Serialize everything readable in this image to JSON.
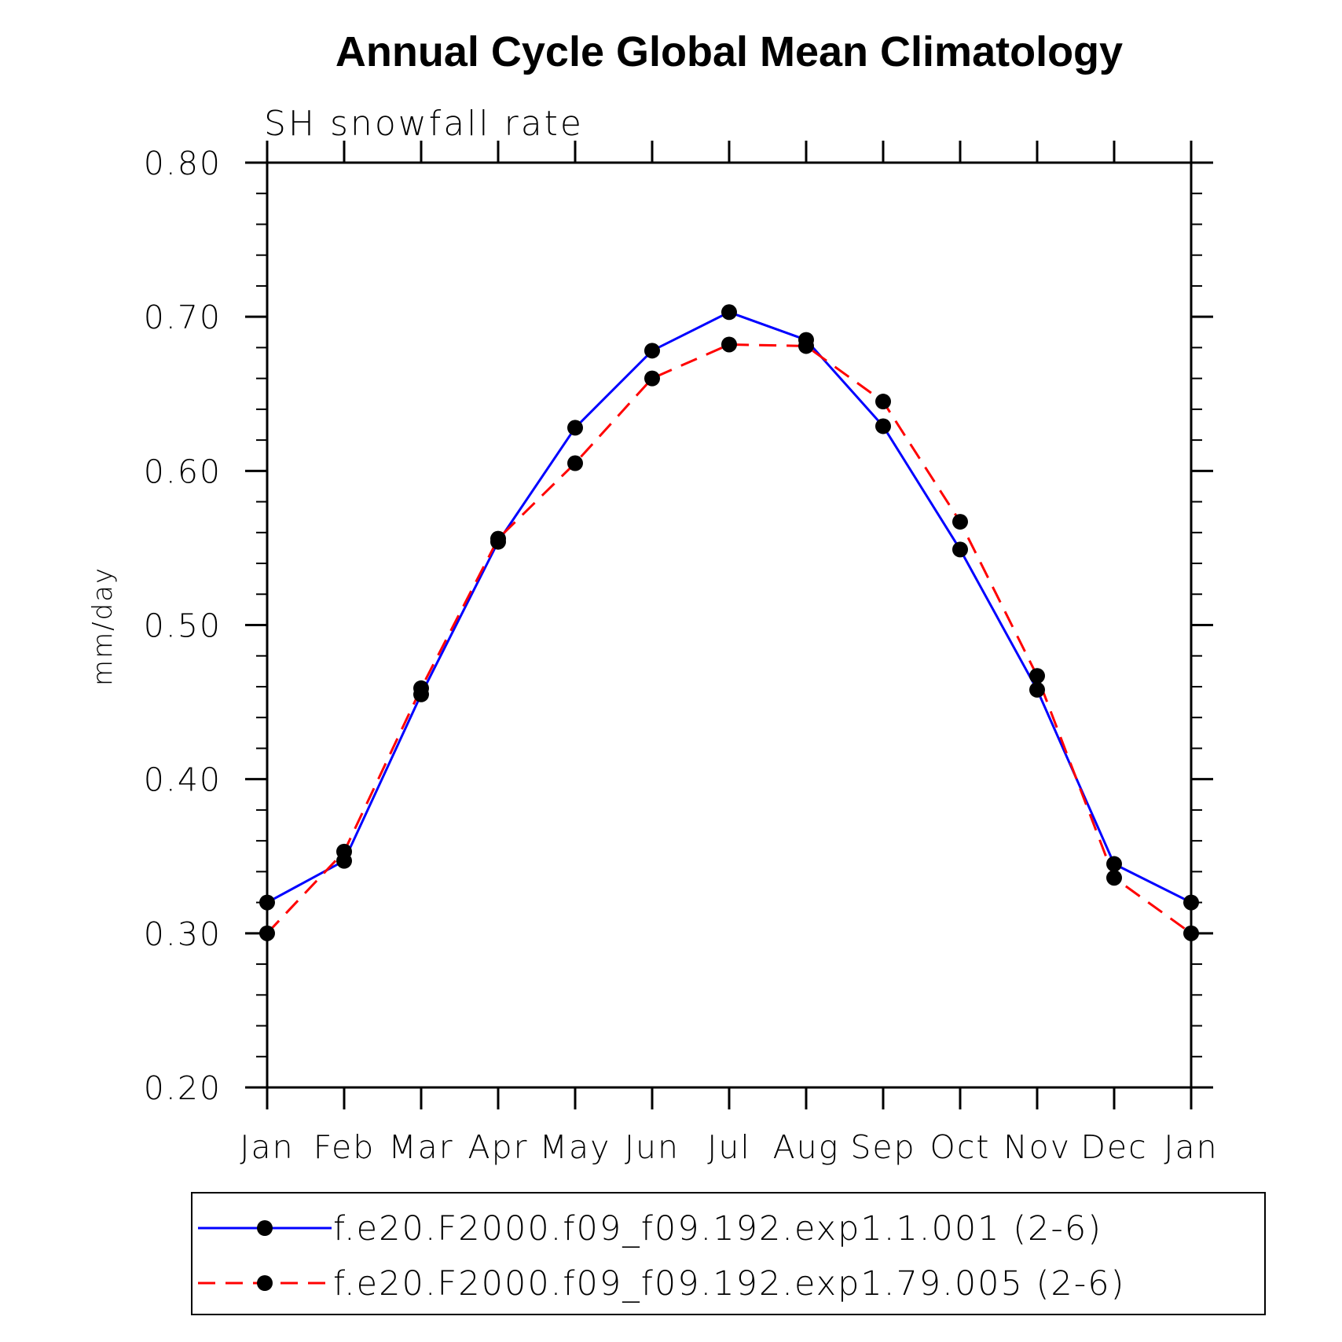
{
  "chart_data": {
    "type": "line",
    "title": "Annual Cycle Global Mean Climatology",
    "subtitle": "SH snowfall rate",
    "xlabel": "",
    "ylabel": "mm/day",
    "categories": [
      "Jan",
      "Feb",
      "Mar",
      "Apr",
      "May",
      "Jun",
      "Jul",
      "Aug",
      "Sep",
      "Oct",
      "Nov",
      "Dec",
      "Jan"
    ],
    "ylim": [
      0.2,
      0.8
    ],
    "yticks": [
      "0.20",
      "0.30",
      "0.40",
      "0.50",
      "0.60",
      "0.70",
      "0.80"
    ],
    "legend_position": "bottom",
    "series": [
      {
        "name": "f.e20.F2000.f09_f09.192.exp1.1.001 (2-6)",
        "color": "#0000ff",
        "dash": "solid",
        "values": [
          0.32,
          0.347,
          0.455,
          0.554,
          0.628,
          0.678,
          0.703,
          0.685,
          0.629,
          0.549,
          0.458,
          0.345,
          0.32
        ]
      },
      {
        "name": "f.e20.F2000.f09_f09.192.exp1.79.005 (2-6)",
        "color": "#ff0000",
        "dash": "dashed",
        "values": [
          0.3,
          0.353,
          0.459,
          0.556,
          0.605,
          0.66,
          0.682,
          0.681,
          0.645,
          0.567,
          0.467,
          0.336,
          0.3
        ]
      }
    ]
  }
}
